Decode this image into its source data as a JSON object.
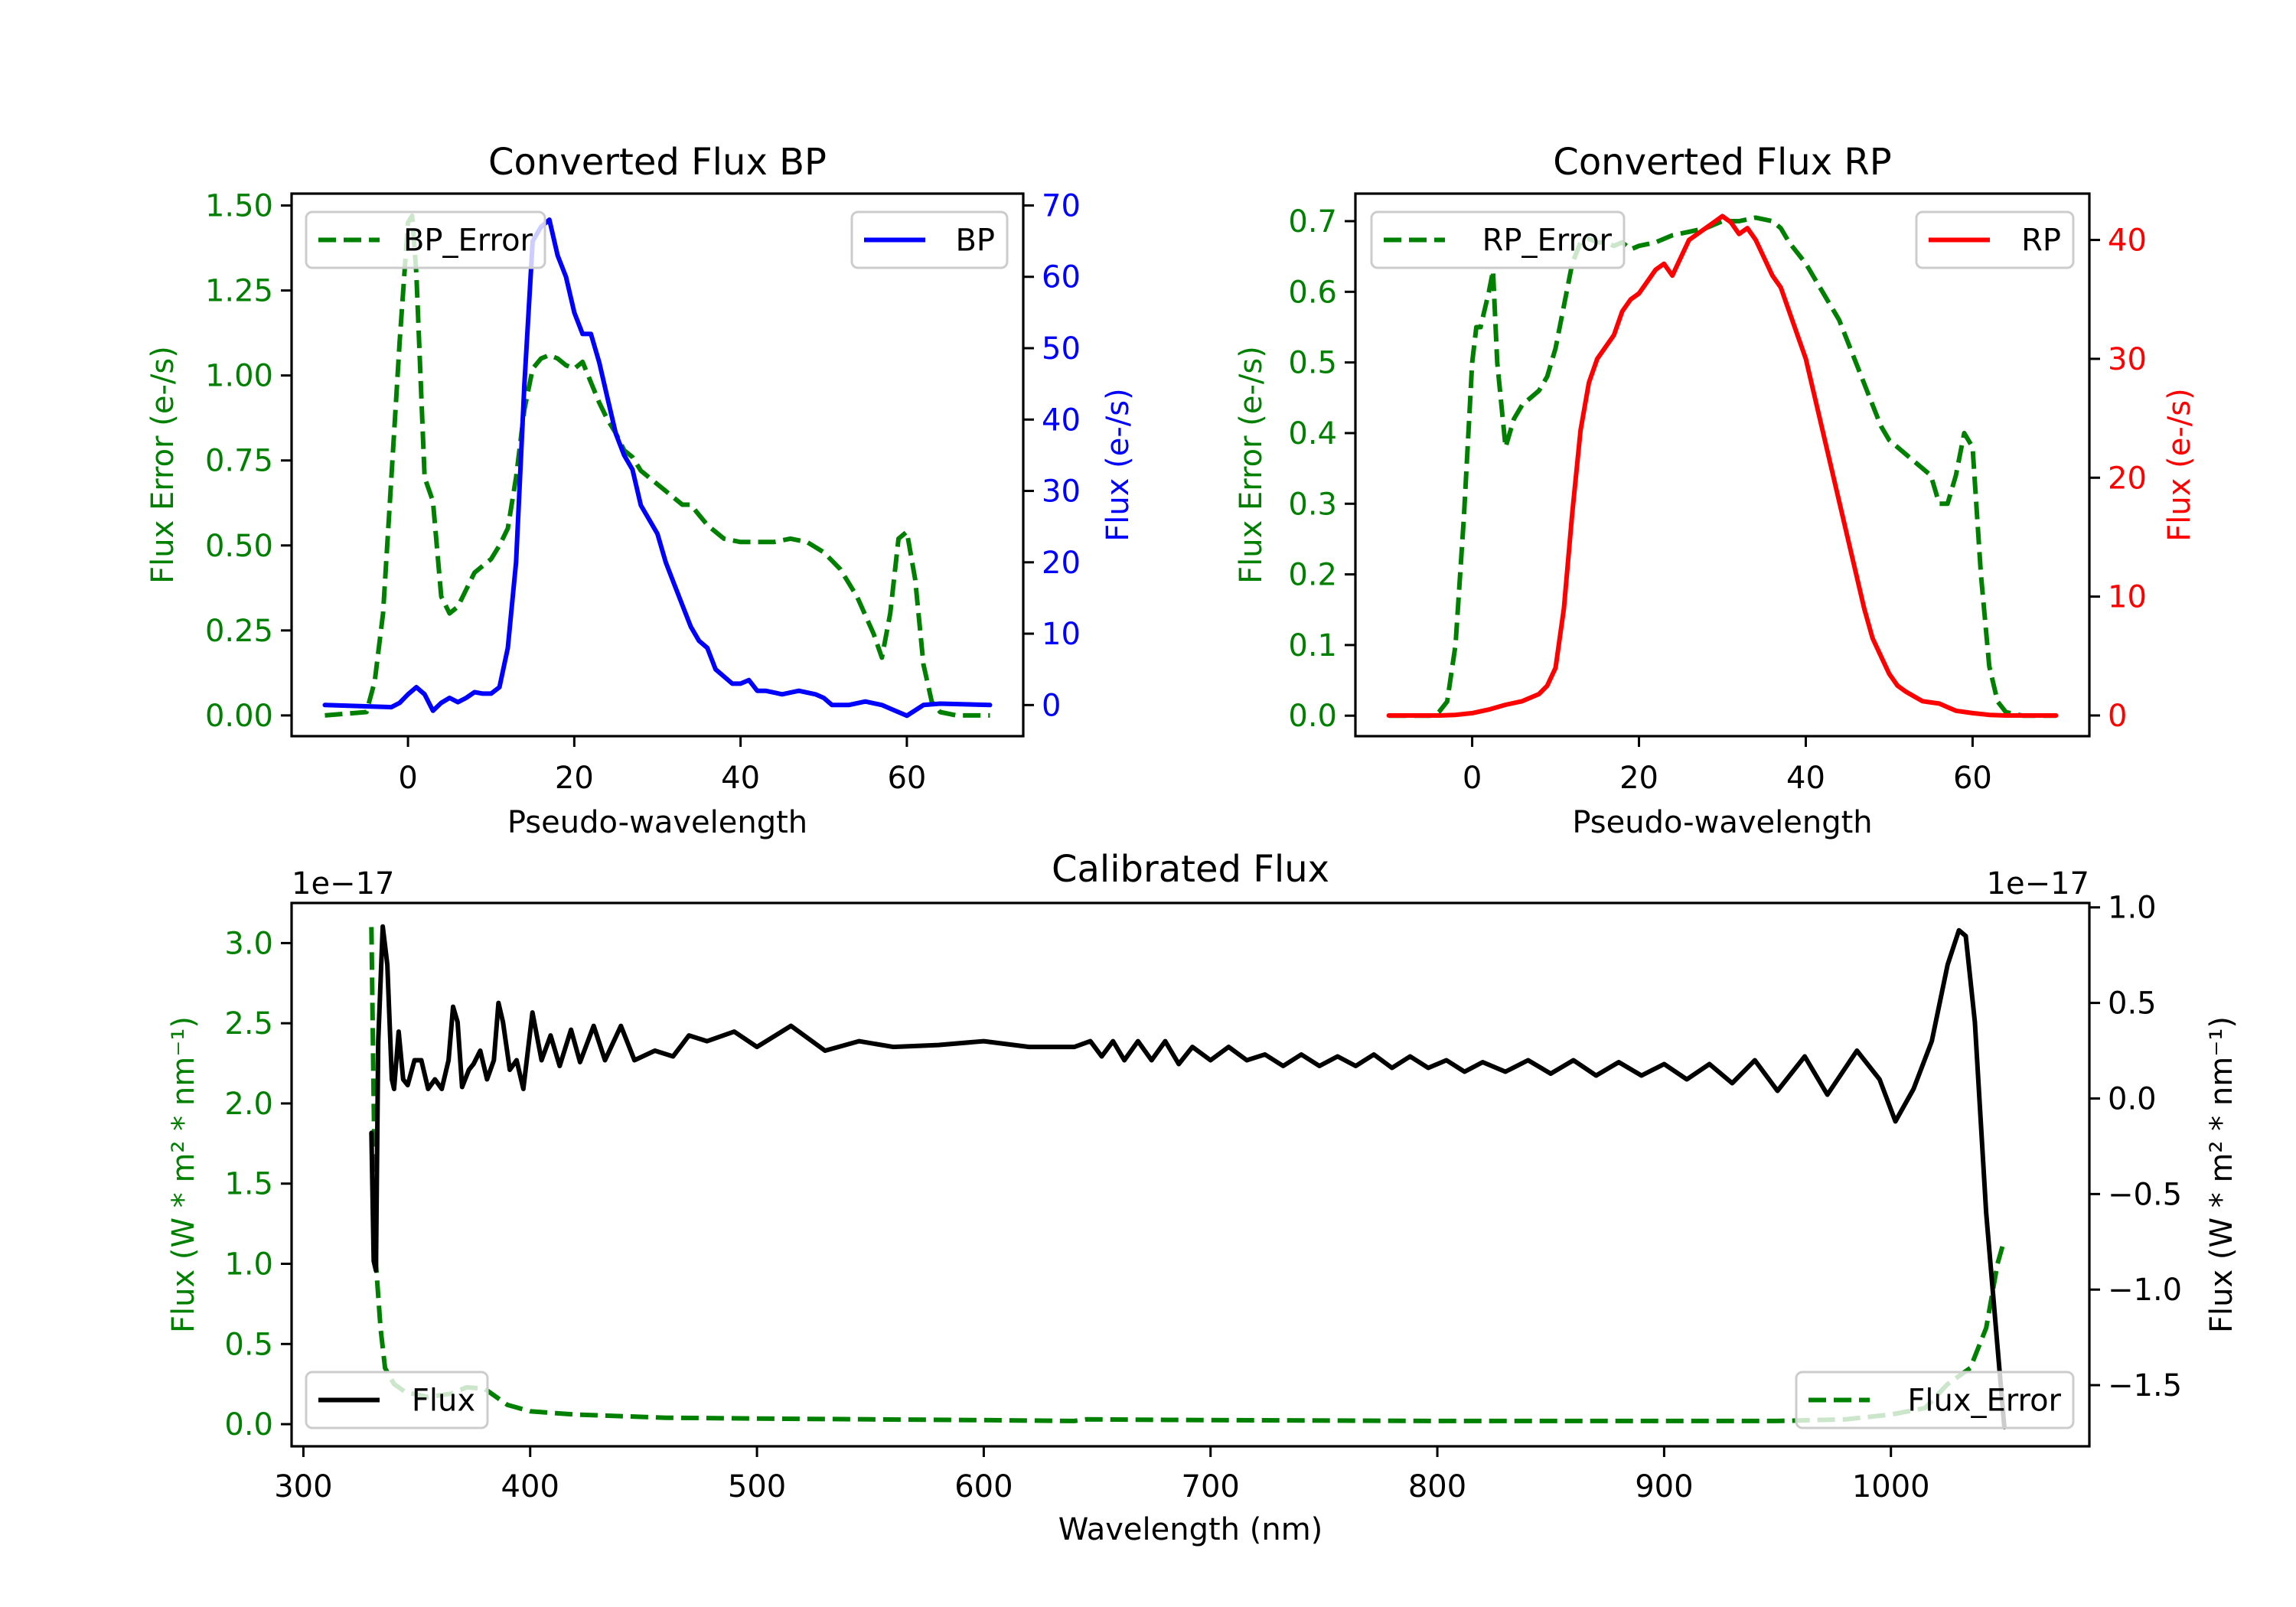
{
  "chart_data": [
    {
      "type": "line",
      "title": "Converted Flux BP",
      "xlabel": "Pseudo-wavelength",
      "xlim": [
        -14,
        74
      ],
      "xticks": [
        0,
        20,
        40,
        60
      ],
      "xtick_labels": [
        "0",
        "20",
        "40",
        "60"
      ],
      "left_axis": {
        "label": "Flux Error (e-/s)",
        "color": "#008000",
        "ylim": [
          -0.061,
          1.535
        ],
        "ticks": [
          0,
          0.25,
          0.5,
          0.75,
          1.0,
          1.25,
          1.5
        ],
        "tick_labels": [
          "0.00",
          "0.25",
          "0.50",
          "0.75",
          "1.00",
          "1.25",
          "1.50"
        ]
      },
      "right_axis": {
        "label": "Flux (e-/s)",
        "color": "#0000ff",
        "ylim": [
          -4.36,
          71.66
        ],
        "ticks": [
          0,
          10,
          20,
          30,
          40,
          50,
          60,
          70
        ],
        "tick_labels": [
          "0",
          "10",
          "20",
          "30",
          "40",
          "50",
          "60",
          "70"
        ]
      },
      "series": [
        {
          "name": "BP_Error",
          "axis": "left",
          "color": "#008000",
          "style": "dashed",
          "legend": "upper left",
          "x": [
            -10,
            -5,
            -4,
            -3,
            -2,
            -1,
            0,
            0.5,
            1,
            1.5,
            2,
            3,
            4,
            5,
            6,
            7,
            8,
            10,
            11,
            12,
            13,
            14,
            15,
            16,
            17,
            18,
            19,
            20,
            21,
            22,
            23,
            24,
            25,
            26,
            27,
            28,
            29,
            30,
            31,
            32,
            33,
            34,
            35,
            36,
            37,
            38,
            40,
            42,
            44,
            46,
            48,
            50,
            52,
            54,
            56,
            57,
            58,
            59,
            60,
            61,
            62,
            63,
            64,
            66,
            70
          ],
          "y": [
            0,
            0.01,
            0.1,
            0.3,
            0.7,
            1.1,
            1.45,
            1.47,
            1.3,
            1.0,
            0.7,
            0.63,
            0.35,
            0.3,
            0.32,
            0.37,
            0.42,
            0.46,
            0.5,
            0.55,
            0.7,
            0.9,
            1.02,
            1.05,
            1.06,
            1.05,
            1.03,
            1.02,
            1.04,
            0.98,
            0.92,
            0.87,
            0.83,
            0.78,
            0.76,
            0.72,
            0.7,
            0.68,
            0.66,
            0.64,
            0.62,
            0.62,
            0.59,
            0.56,
            0.54,
            0.52,
            0.51,
            0.51,
            0.51,
            0.52,
            0.51,
            0.48,
            0.43,
            0.35,
            0.24,
            0.17,
            0.3,
            0.52,
            0.54,
            0.4,
            0.15,
            0.04,
            0.01,
            0,
            0
          ]
        },
        {
          "name": "BP",
          "axis": "right",
          "color": "#0000ff",
          "style": "solid",
          "legend": "upper right",
          "x": [
            -10,
            -2,
            -1,
            0,
            1,
            2,
            3,
            4,
            5,
            6,
            7,
            8,
            9,
            10,
            11,
            12,
            13,
            14,
            15,
            16,
            17,
            18,
            19,
            20,
            21,
            22,
            23,
            24,
            25,
            26,
            27,
            28,
            29,
            30,
            31,
            32,
            33,
            34,
            35,
            36,
            37,
            38,
            39,
            40,
            41,
            42,
            43,
            45,
            47,
            49,
            50,
            51,
            53,
            55,
            57,
            58,
            60,
            62,
            64,
            70
          ],
          "y": [
            0,
            -0.3,
            0.3,
            1.5,
            2.5,
            1.5,
            -0.8,
            0.3,
            1.0,
            0.4,
            1.0,
            1.8,
            1.6,
            1.6,
            2.5,
            8,
            20,
            45,
            65,
            67,
            68,
            63,
            60,
            55,
            52,
            52,
            48,
            43,
            38,
            35,
            33,
            28,
            26,
            24,
            20,
            17,
            14,
            11,
            9,
            8,
            5,
            4,
            3,
            3,
            3.5,
            2,
            2,
            1.5,
            2,
            1.5,
            1,
            0,
            0,
            0.5,
            0,
            -0.5,
            -1.5,
            0,
            0.2,
            0
          ]
        }
      ]
    },
    {
      "type": "line",
      "title": "Converted Flux RP",
      "xlabel": "Pseudo-wavelength",
      "xlim": [
        -14,
        74
      ],
      "xticks": [
        0,
        20,
        40,
        60
      ],
      "xtick_labels": [
        "0",
        "20",
        "40",
        "60"
      ],
      "left_axis": {
        "label": "Flux Error (e-/s)",
        "color": "#008000",
        "ylim": [
          -0.029,
          0.739
        ],
        "ticks": [
          0,
          0.1,
          0.2,
          0.3,
          0.4,
          0.5,
          0.6,
          0.7
        ],
        "tick_labels": [
          "0.0",
          "0.1",
          "0.2",
          "0.3",
          "0.4",
          "0.5",
          "0.6",
          "0.7"
        ]
      },
      "right_axis": {
        "label": "Flux (e-/s)",
        "color": "#ff0000",
        "ylim": [
          -1.74,
          43.9
        ],
        "ticks": [
          0,
          10,
          20,
          30,
          40
        ],
        "tick_labels": [
          "0",
          "10",
          "20",
          "30",
          "40"
        ]
      },
      "series": [
        {
          "name": "RP_Error",
          "axis": "left",
          "color": "#008000",
          "style": "dashed",
          "legend": "upper left",
          "x": [
            -10,
            -5,
            -4,
            -3,
            -2,
            -1,
            0,
            0.5,
            1,
            2,
            2.5,
            3,
            4,
            5,
            6,
            7,
            8,
            9,
            10,
            11,
            12,
            13,
            14,
            15,
            16,
            17,
            18,
            19,
            20,
            22,
            24,
            26,
            28,
            30,
            32,
            34,
            36,
            37,
            38,
            39,
            40,
            41,
            42,
            43,
            44,
            45,
            46,
            47,
            48,
            49,
            50,
            51,
            52,
            53,
            54,
            55,
            55.5,
            56,
            57,
            58,
            59,
            60,
            61,
            62,
            63,
            64,
            66,
            70
          ],
          "y": [
            0,
            0,
            0.005,
            0.02,
            0.1,
            0.28,
            0.5,
            0.55,
            0.55,
            0.6,
            0.63,
            0.5,
            0.38,
            0.42,
            0.44,
            0.45,
            0.46,
            0.48,
            0.52,
            0.58,
            0.64,
            0.67,
            0.675,
            0.67,
            0.67,
            0.665,
            0.67,
            0.66,
            0.665,
            0.67,
            0.68,
            0.685,
            0.69,
            0.7,
            0.7,
            0.705,
            0.7,
            0.69,
            0.67,
            0.655,
            0.64,
            0.62,
            0.6,
            0.58,
            0.56,
            0.53,
            0.5,
            0.47,
            0.44,
            0.41,
            0.39,
            0.38,
            0.37,
            0.36,
            0.35,
            0.34,
            0.32,
            0.3,
            0.3,
            0.34,
            0.4,
            0.38,
            0.2,
            0.07,
            0.02,
            0.005,
            0,
            0
          ]
        },
        {
          "name": "RP",
          "axis": "right",
          "color": "#ff0000",
          "style": "solid",
          "legend": "upper right",
          "x": [
            -10,
            -4,
            -2,
            0,
            2,
            4,
            6,
            8,
            9,
            10,
            11,
            12,
            13,
            14,
            15,
            16,
            17,
            18,
            19,
            20,
            21,
            22,
            23,
            24,
            25,
            26,
            27,
            28,
            29,
            30,
            31,
            32,
            33,
            34,
            35,
            36,
            37,
            38,
            39,
            40,
            41,
            42,
            43,
            44,
            45,
            46,
            47,
            48,
            49,
            50,
            51,
            52,
            53,
            54,
            55,
            56,
            57,
            58,
            60,
            62,
            64,
            70
          ],
          "y": [
            0,
            0,
            0.05,
            0.2,
            0.5,
            0.9,
            1.2,
            1.8,
            2.5,
            4,
            9,
            17,
            24,
            28,
            30,
            31,
            32,
            34,
            35,
            35.5,
            36.5,
            37.5,
            38,
            37,
            38.5,
            40,
            40.5,
            41,
            41.5,
            42,
            41.5,
            40.5,
            41,
            40,
            38.5,
            37,
            36,
            34,
            32,
            30,
            27,
            24,
            21,
            18,
            15,
            12,
            9,
            6.5,
            5,
            3.5,
            2.5,
            2,
            1.6,
            1.2,
            1.1,
            1,
            0.7,
            0.4,
            0.2,
            0.05,
            0,
            0
          ]
        }
      ]
    },
    {
      "type": "line",
      "title": "Calibrated Flux",
      "xlabel": "Wavelength (nm)",
      "xlim": [
        294.8,
        1087.5
      ],
      "xticks": [
        300,
        400,
        500,
        600,
        700,
        800,
        900,
        1000
      ],
      "xtick_labels": [
        "300",
        "400",
        "500",
        "600",
        "700",
        "800",
        "900",
        "1000"
      ],
      "left_axis": {
        "label": "Flux (W * m² * nm⁻¹)",
        "color": "#008000",
        "ylim": [
          -0.138,
          3.25
        ],
        "offset_text": "1e−17",
        "ticks": [
          0,
          0.5,
          1.0,
          1.5,
          2.0,
          2.5,
          3.0
        ],
        "tick_labels": [
          "0.0",
          "0.5",
          "1.0",
          "1.5",
          "2.0",
          "2.5",
          "3.0"
        ]
      },
      "right_axis": {
        "label": "Flux (W * m² * nm⁻¹)",
        "color": "#000000",
        "ylim": [
          -1.82,
          1.023
        ],
        "offset_text": "1e−17",
        "ticks": [
          -1.5,
          -1.0,
          -0.5,
          0.0,
          0.5,
          1.0
        ],
        "tick_labels": [
          "−1.5",
          "−1.0",
          "−0.5",
          "0.0",
          "0.5",
          "1.0"
        ]
      },
      "series": [
        {
          "name": "Flux_Error",
          "axis": "left",
          "color": "#008000",
          "style": "dashed",
          "legend": "lower right",
          "x": [
            330,
            331,
            332,
            334,
            336,
            340,
            345,
            355,
            365,
            372,
            380,
            390,
            400,
            420,
            440,
            460,
            500,
            550,
            600,
            640,
            645,
            700,
            800,
            900,
            950,
            980,
            1000,
            1015,
            1025,
            1035,
            1042,
            1047,
            1050
          ],
          "y": [
            3.1,
            2.0,
            1.0,
            0.6,
            0.35,
            0.25,
            0.2,
            0.17,
            0.19,
            0.23,
            0.22,
            0.12,
            0.08,
            0.06,
            0.05,
            0.04,
            0.035,
            0.03,
            0.025,
            0.02,
            0.03,
            0.025,
            0.02,
            0.02,
            0.02,
            0.03,
            0.06,
            0.1,
            0.25,
            0.35,
            0.6,
            1.0,
            1.15
          ]
        },
        {
          "name": "Flux",
          "axis": "right",
          "color": "#000000",
          "style": "solid",
          "legend": "lower left",
          "x": [
            330,
            331,
            332,
            333,
            335,
            337,
            339,
            340,
            342,
            344,
            346,
            349,
            352,
            355,
            358,
            361,
            364,
            366,
            368,
            370,
            373,
            375,
            378,
            381,
            384,
            386,
            388,
            391,
            394,
            397,
            401,
            405,
            409,
            413,
            418,
            422,
            428,
            433,
            440,
            446,
            455,
            463,
            470,
            478,
            490,
            500,
            515,
            530,
            545,
            560,
            580,
            600,
            620,
            640,
            647,
            652,
            657,
            662,
            668,
            674,
            680,
            686,
            692,
            700,
            708,
            716,
            724,
            732,
            740,
            748,
            756,
            764,
            772,
            780,
            788,
            796,
            804,
            812,
            820,
            830,
            840,
            850,
            860,
            870,
            880,
            890,
            900,
            910,
            920,
            930,
            940,
            950,
            962,
            972,
            985,
            995,
            1002,
            1010,
            1018,
            1025,
            1030,
            1033,
            1037,
            1042,
            1050
          ],
          "y": [
            -0.18,
            -0.85,
            -0.9,
            0.3,
            0.9,
            0.7,
            0.1,
            0.05,
            0.35,
            0.1,
            0.07,
            0.2,
            0.2,
            0.05,
            0.1,
            0.05,
            0.2,
            0.48,
            0.4,
            0.06,
            0.15,
            0.18,
            0.25,
            0.1,
            0.2,
            0.5,
            0.4,
            0.15,
            0.2,
            0.05,
            0.45,
            0.2,
            0.33,
            0.17,
            0.36,
            0.19,
            0.38,
            0.2,
            0.38,
            0.2,
            0.25,
            0.22,
            0.33,
            0.3,
            0.35,
            0.27,
            0.38,
            0.25,
            0.3,
            0.27,
            0.28,
            0.3,
            0.27,
            0.27,
            0.3,
            0.22,
            0.3,
            0.2,
            0.3,
            0.2,
            0.3,
            0.18,
            0.27,
            0.2,
            0.27,
            0.2,
            0.23,
            0.17,
            0.23,
            0.17,
            0.22,
            0.17,
            0.23,
            0.16,
            0.22,
            0.16,
            0.2,
            0.14,
            0.19,
            0.14,
            0.2,
            0.13,
            0.2,
            0.12,
            0.19,
            0.12,
            0.18,
            0.1,
            0.18,
            0.08,
            0.2,
            0.04,
            0.22,
            0.02,
            0.25,
            0.1,
            -0.12,
            0.05,
            0.3,
            0.7,
            0.88,
            0.85,
            0.4,
            -0.6,
            -1.72
          ]
        }
      ]
    }
  ]
}
